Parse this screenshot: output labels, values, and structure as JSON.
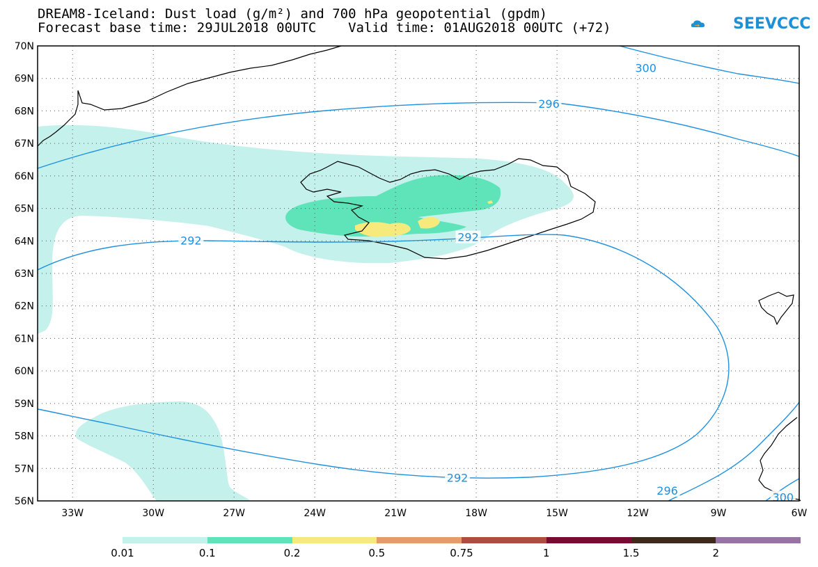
{
  "title": {
    "line1": "DREAM8-Iceland: Dust load (g/m²) and 700 hPa geopotential (gpdm)",
    "line2": "Forecast base time: 29JUL2018 00UTC    Valid time: 01AUG2018 00UTC (+72)"
  },
  "logo": {
    "text": "SEEVCCC",
    "icon": "cloud-logo-icon",
    "color": "#1e90d6"
  },
  "map": {
    "lat_labels": [
      "70N",
      "69N",
      "68N",
      "67N",
      "66N",
      "65N",
      "64N",
      "63N",
      "62N",
      "61N",
      "60N",
      "59N",
      "58N",
      "57N",
      "56N"
    ],
    "lon_labels": [
      "33W",
      "30W",
      "27W",
      "24W",
      "21W",
      "18W",
      "15W",
      "12W",
      "9W",
      "6W"
    ],
    "lat_range": [
      56,
      70
    ],
    "lon_range": [
      -34.3,
      -6
    ],
    "grid": "dotted",
    "contour_color": "#1e90e0",
    "contour_labels": [
      {
        "value": "300",
        "lon": -11.7,
        "lat": 69.3
      },
      {
        "value": "296",
        "lon": -15.3,
        "lat": 68.2
      },
      {
        "value": "292",
        "lon": -28.6,
        "lat": 64.0
      },
      {
        "value": "292",
        "lon": -18.3,
        "lat": 64.1
      },
      {
        "value": "292",
        "lon": -18.7,
        "lat": 56.7
      },
      {
        "value": "296",
        "lon": -10.9,
        "lat": 56.3
      },
      {
        "value": "300",
        "lon": -6.6,
        "lat": 56.1
      }
    ]
  },
  "colorbar": {
    "colors": [
      "#c4f1ec",
      "#5fe3b9",
      "#f7ea7c",
      "#e69b6b",
      "#b04d43",
      "#7a0a32",
      "#3e2a1a",
      "#9774a5"
    ],
    "labels": [
      "0.01",
      "0.1",
      "0.2",
      "0.5",
      "0.75",
      "1",
      "1.5",
      "2"
    ]
  }
}
